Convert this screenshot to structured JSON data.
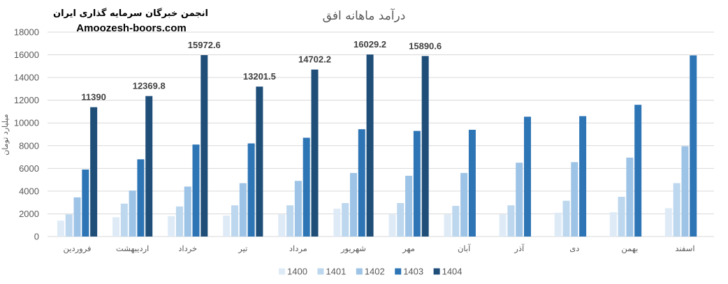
{
  "watermark": {
    "org": "انجمن خبرگان سرمایه گذاری ایران",
    "site": "Amoozesh-boors.com"
  },
  "chart_data": {
    "type": "bar",
    "title": "درآمد ماهانه افق",
    "xlabel": "",
    "ylabel": "میلیارد تومان",
    "ylim": [
      0,
      18000
    ],
    "y_ticks": [
      0,
      2000,
      4000,
      6000,
      8000,
      10000,
      12000,
      14000,
      16000,
      18000
    ],
    "grid": true,
    "legend_position": "bottom",
    "gridline_color": "#d9d9d9",
    "categories": [
      "فروردین",
      "اردیبهشت",
      "خرداد",
      "تیر",
      "مرداد",
      "شهریور",
      "مهر",
      "آبان",
      "آذر",
      "دی",
      "بهمن",
      "اسفند"
    ],
    "series": [
      {
        "name": "1400",
        "color": "#deebf7",
        "values": [
          1400,
          1700,
          1800,
          1850,
          1950,
          2450,
          1950,
          1950,
          1950,
          2100,
          2150,
          2500
        ]
      },
      {
        "name": "1401",
        "color": "#bdd7ee",
        "values": [
          1950,
          2900,
          2650,
          2750,
          2750,
          2950,
          2950,
          2700,
          2750,
          3150,
          3500,
          4700
        ]
      },
      {
        "name": "1402",
        "color": "#9dc3e6",
        "values": [
          3450,
          4050,
          4400,
          4700,
          4900,
          5600,
          5350,
          5600,
          6500,
          6550,
          6950,
          7950
        ]
      },
      {
        "name": "1403",
        "color": "#2e75b6",
        "values": [
          5900,
          6800,
          8100,
          8200,
          8700,
          9450,
          9300,
          9400,
          10550,
          10600,
          11600,
          15950
        ]
      },
      {
        "name": "1404",
        "color": "#1f4e79",
        "show_data_labels": true,
        "values": [
          11390,
          12369.8,
          15972.6,
          13201.5,
          14702.2,
          16029.2,
          15890.6,
          null,
          null,
          null,
          null,
          null
        ]
      }
    ]
  }
}
